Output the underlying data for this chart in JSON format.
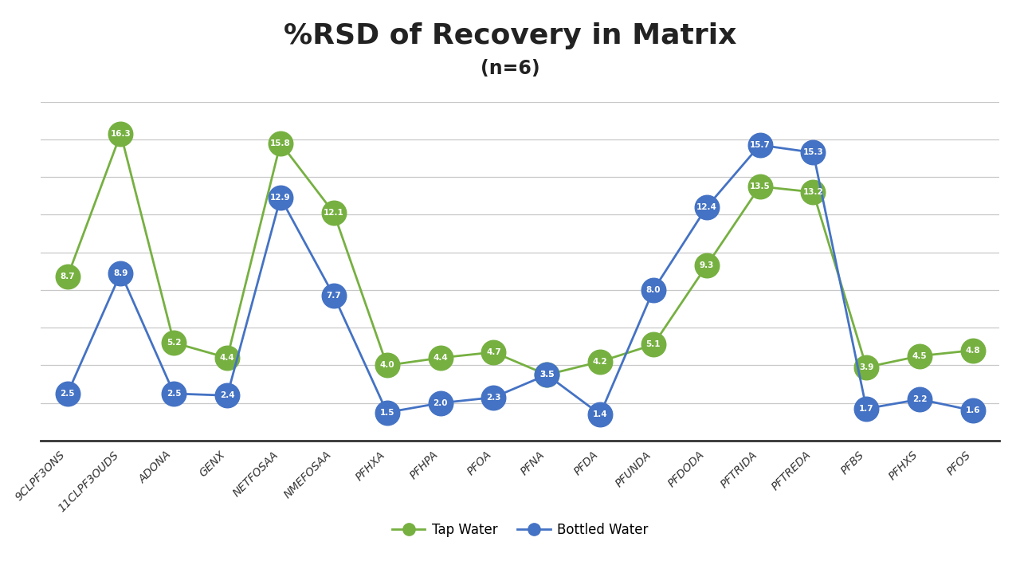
{
  "title": "%RSD of Recovery in Matrix",
  "subtitle": "(n=6)",
  "categories": [
    "9CLPF3ONS",
    "11CLPF3OUDS",
    "ADONA",
    "GENX",
    "NETFOSAA",
    "NMEFOSAA",
    "PFHXA",
    "PFHPA",
    "PFOA",
    "PFNA",
    "PFDA",
    "PFUNDA",
    "PFDODA",
    "PFTRIDA",
    "PFTREDA",
    "PFBS",
    "PFHXS",
    "PFOS"
  ],
  "tap_water": [
    8.7,
    16.3,
    5.2,
    4.4,
    15.8,
    12.1,
    4.0,
    4.4,
    4.7,
    3.5,
    4.2,
    5.1,
    9.3,
    13.5,
    13.2,
    3.9,
    4.5,
    4.8
  ],
  "bottled_water": [
    2.5,
    8.9,
    2.5,
    2.4,
    12.9,
    7.7,
    1.5,
    2.0,
    2.3,
    3.5,
    1.4,
    8.0,
    12.4,
    15.7,
    15.3,
    1.7,
    2.2,
    1.6
  ],
  "tap_color": "#76b041",
  "bottled_color": "#4472c4",
  "background_color": "#ffffff",
  "title_fontsize": 26,
  "subtitle_fontsize": 17,
  "tick_fontsize": 10,
  "legend_fontsize": 12,
  "markersize": 22,
  "label_fontsize": 7.5,
  "ylim": [
    0,
    18
  ],
  "yticks": [
    0,
    2,
    4,
    6,
    8,
    10,
    12,
    14,
    16,
    18
  ]
}
